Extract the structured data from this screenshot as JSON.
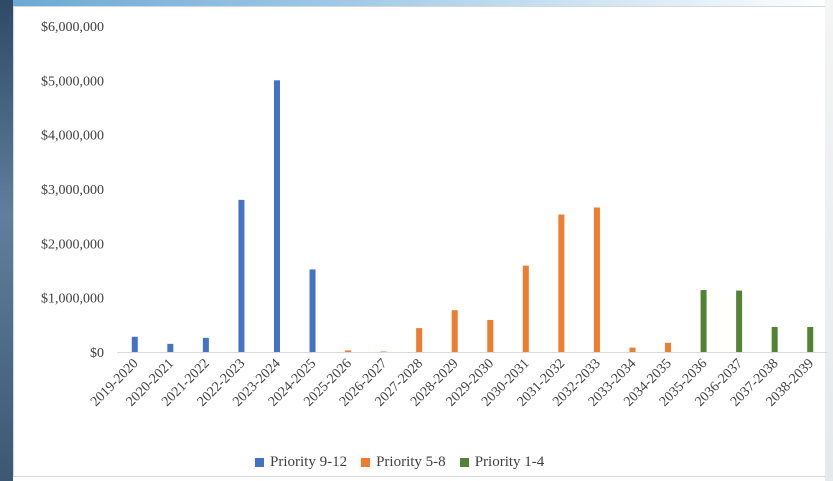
{
  "chart_data": {
    "type": "bar",
    "categories": [
      "2019-2020",
      "2020-2021",
      "2021-2022",
      "2022-2023",
      "2023-2024",
      "2024-2025",
      "2025-2026",
      "2026-2027",
      "2027-2028",
      "2028-2029",
      "2029-2030",
      "2030-2031",
      "2031-2032",
      "2032-2033",
      "2033-2034",
      "2034-2035",
      "2035-2036",
      "2036-2037",
      "2037-2038",
      "2038-2039"
    ],
    "series": [
      {
        "name": "Priority 9-12",
        "color": "#4472c4",
        "values": [
          280000,
          150000,
          260000,
          2800000,
          5000000,
          1520000,
          null,
          null,
          null,
          null,
          null,
          null,
          null,
          null,
          null,
          null,
          null,
          null,
          null,
          null
        ]
      },
      {
        "name": "Priority 5-8",
        "color": "#ed7d31",
        "values": [
          null,
          null,
          null,
          null,
          null,
          null,
          30000,
          10000,
          440000,
          770000,
          590000,
          1590000,
          2530000,
          2660000,
          80000,
          170000,
          null,
          null,
          null,
          null
        ]
      },
      {
        "name": "Priority 1-4",
        "color": "#548235",
        "values": [
          null,
          null,
          null,
          null,
          null,
          null,
          null,
          null,
          null,
          null,
          null,
          null,
          null,
          null,
          null,
          null,
          1140000,
          1130000,
          460000,
          460000
        ]
      }
    ],
    "ylim": [
      0,
      6000000
    ],
    "yticks": [
      "$0",
      "$1,000,000",
      "$2,000,000",
      "$3,000,000",
      "$4,000,000",
      "$5,000,000",
      "$6,000,000"
    ],
    "grid": false,
    "legend": "bottom"
  }
}
